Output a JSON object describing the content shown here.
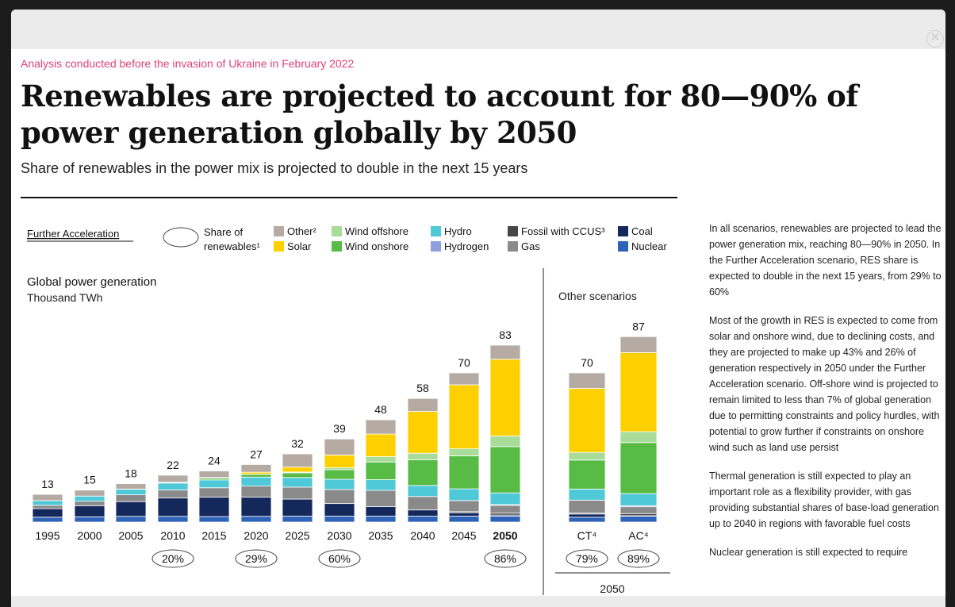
{
  "page": {
    "eyebrow": "Analysis conducted before the invasion of Ukraine in February 2022",
    "title": "Renewables are projected to account for 80—90% of power generation globally by 2050",
    "subtitle": "Share of renewables in the power mix is projected to double in the next 15 years",
    "close_icon": "close-icon"
  },
  "sidebar": {
    "paragraphs": [
      "In all scenarios, renewables are projected to lead the power generation mix, reaching 80—90% in 2050. In the Further Acceleration scenario, RES share is expected to double in the next 15 years, from 29% to 60%",
      "Most of the growth in RES is expected to come from solar and onshore wind, due to declining costs, and they are projected to make up 43% and 26% of generation respectively in 2050 under the Further Acceleration scenario. Off-shore wind is projected to remain limited to less than 7% of global generation due to permitting constraints and policy hurdles, with potential to grow further if constraints on onshore wind such as land use persist",
      "Thermal generation is still expected to play an important role as a flexibility provider, with gas providing substantial shares of base-load generation up to 2040 in regions with favorable fuel costs",
      "Nuclear generation is still expected to require"
    ]
  },
  "chart_data": {
    "type": "bar",
    "stacked": true,
    "scenario_label": "Further Acceleration",
    "title": "Global power generation",
    "ylabel": "Thousand TWh",
    "share_legend_label": "Share of renewables¹",
    "other_scenarios_label": "Other scenarios",
    "other_scenarios_year": "2050",
    "categories": [
      "1995",
      "2000",
      "2005",
      "2010",
      "2015",
      "2020",
      "2025",
      "2030",
      "2035",
      "2040",
      "2045",
      "2050",
      "CT⁴",
      "AC⁴"
    ],
    "totals": [
      13,
      15,
      18,
      22,
      24,
      27,
      32,
      39,
      48,
      58,
      70,
      83,
      70,
      87
    ],
    "renewables_share": [
      "",
      "",
      "",
      "20%",
      "",
      "29%",
      "",
      "60%",
      "",
      "",
      "",
      "86%",
      "79%",
      "89%"
    ],
    "bold_categories": [
      "2050"
    ],
    "legend": [
      {
        "key": "other",
        "label": "Other²",
        "color": "#b5aba3"
      },
      {
        "key": "solar",
        "label": "Solar",
        "color": "#ffd000"
      },
      {
        "key": "wind_offshore",
        "label": "Wind offshore",
        "color": "#a8dc98"
      },
      {
        "key": "wind_onshore",
        "label": "Wind onshore",
        "color": "#57bb45"
      },
      {
        "key": "hydro",
        "label": "Hydro",
        "color": "#4fc8d8"
      },
      {
        "key": "hydrogen",
        "label": "Hydrogen",
        "color": "#8d9fdd"
      },
      {
        "key": "fossil_ccus",
        "label": "Fossil with CCUS³",
        "color": "#474747"
      },
      {
        "key": "gas",
        "label": "Gas",
        "color": "#8a8a8a"
      },
      {
        "key": "coal",
        "label": "Coal",
        "color": "#14285c"
      },
      {
        "key": "nuclear",
        "label": "Nuclear",
        "color": "#2f63b8"
      }
    ],
    "stack_order": [
      "nuclear",
      "coal",
      "fossil_ccus",
      "gas",
      "hydrogen",
      "hydro",
      "wind_onshore",
      "wind_offshore",
      "solar",
      "other"
    ],
    "series": {
      "nuclear": [
        2.3,
        2.5,
        2.7,
        2.7,
        2.6,
        2.7,
        2.8,
        2.8,
        2.8,
        2.8,
        2.8,
        2.8,
        2.3,
        2.8
      ],
      "coal": [
        4.0,
        5.2,
        6.9,
        8.6,
        9.1,
        9.0,
        8.0,
        5.9,
        4.5,
        2.9,
        1.6,
        0.5,
        1.5,
        0.2
      ],
      "fossil_ccus": [
        0,
        0,
        0,
        0,
        0,
        0,
        0,
        0,
        0,
        0,
        0.5,
        0.9,
        0.4,
        1.0
      ],
      "gas": [
        1.6,
        2.1,
        3.2,
        3.8,
        4.4,
        5.2,
        5.6,
        6.6,
        7.6,
        6.3,
        5.2,
        3.7,
        6.1,
        3.2
      ],
      "hydrogen": [
        0,
        0,
        0,
        0,
        0,
        0,
        0,
        0,
        0,
        0,
        0,
        0.3,
        0,
        0.5
      ],
      "hydro": [
        2.2,
        2.4,
        2.6,
        3.2,
        3.7,
        4.2,
        4.5,
        4.8,
        5.0,
        5.2,
        5.5,
        5.5,
        5.2,
        5.7
      ],
      "wind_onshore": [
        0,
        0,
        0.1,
        0.3,
        0.8,
        1.3,
        2.2,
        4.5,
        8.3,
        12.0,
        15.5,
        21.7,
        13.6,
        23.9
      ],
      "wind_offshore": [
        0,
        0,
        0,
        0,
        0,
        0.1,
        0.4,
        0.9,
        2.5,
        3.1,
        3.3,
        5.0,
        3.6,
        5.1
      ],
      "solar": [
        0,
        0,
        0,
        0.1,
        0.3,
        0.9,
        2.3,
        6.0,
        10.6,
        19.6,
        30.0,
        36.0,
        30.0,
        37.1
      ],
      "other": [
        2.9,
        2.8,
        2.5,
        3.3,
        3.1,
        3.6,
        6.2,
        7.5,
        6.7,
        6.1,
        5.6,
        6.6,
        7.3,
        7.5
      ]
    }
  }
}
